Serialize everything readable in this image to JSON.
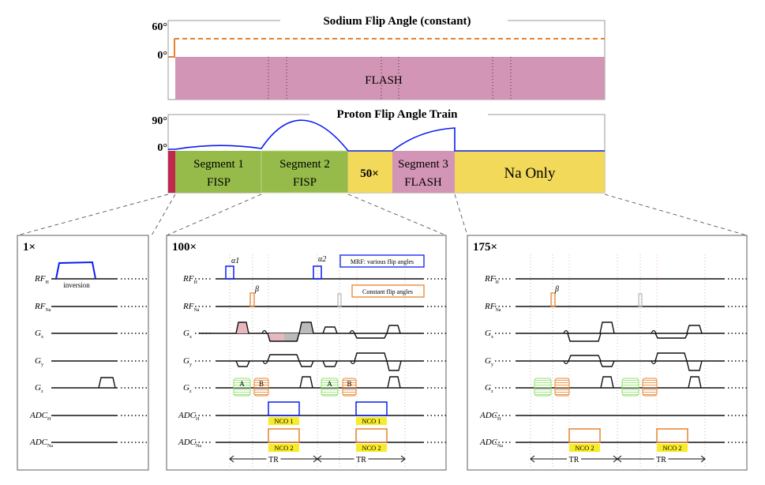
{
  "sodium_panel": {
    "title": "Sodium Flip Angle (constant)",
    "y_max_label": "60°",
    "y_min_label": "0°",
    "block_label": "FLASH"
  },
  "proton_panel": {
    "title": "Proton Flip Angle Train",
    "y_max_label": "90°",
    "y_min_label": "0°",
    "segments": [
      {
        "name": "Segment 1",
        "type": "FISP"
      },
      {
        "name": "Segment 2",
        "type": "FISP"
      },
      {
        "label": "50×"
      },
      {
        "name": "Segment 3",
        "type": "FLASH"
      },
      {
        "label": "Na Only"
      }
    ]
  },
  "row_labels": [
    {
      "main": "RF",
      "sub": "H"
    },
    {
      "main": "RF",
      "sub": "Na"
    },
    {
      "main": "G",
      "sub": "x"
    },
    {
      "main": "G",
      "sub": "y"
    },
    {
      "main": "G",
      "sub": "z"
    },
    {
      "main": "ADC",
      "sub": "H"
    },
    {
      "main": "ADC",
      "sub": "Na"
    }
  ],
  "panels": [
    {
      "repeat": "1×",
      "pulse_label": "inversion"
    },
    {
      "repeat": "100×",
      "alpha1": "α1",
      "alpha2": "α2",
      "beta": "β",
      "legend_mrf": "MRF: various flip angles",
      "legend_constant": "Constant flip angles",
      "block_a": "A",
      "block_b": "B",
      "nco1": "NCO 1",
      "nco2": "NCO 2",
      "tr": "TR"
    },
    {
      "repeat": "175×",
      "beta": "β",
      "nco2": "NCO 2",
      "tr": "TR"
    }
  ],
  "colors": {
    "proton_rf": "#0a1df0",
    "sodium_rf": "#e8822a",
    "flash": "#d395b5",
    "fisp": "#96bb4a",
    "na_only": "#f3d95a",
    "inversion": "#c0284f",
    "nco_label": "#f7ec2a",
    "spoiler_a": "#8fe06a"
  }
}
